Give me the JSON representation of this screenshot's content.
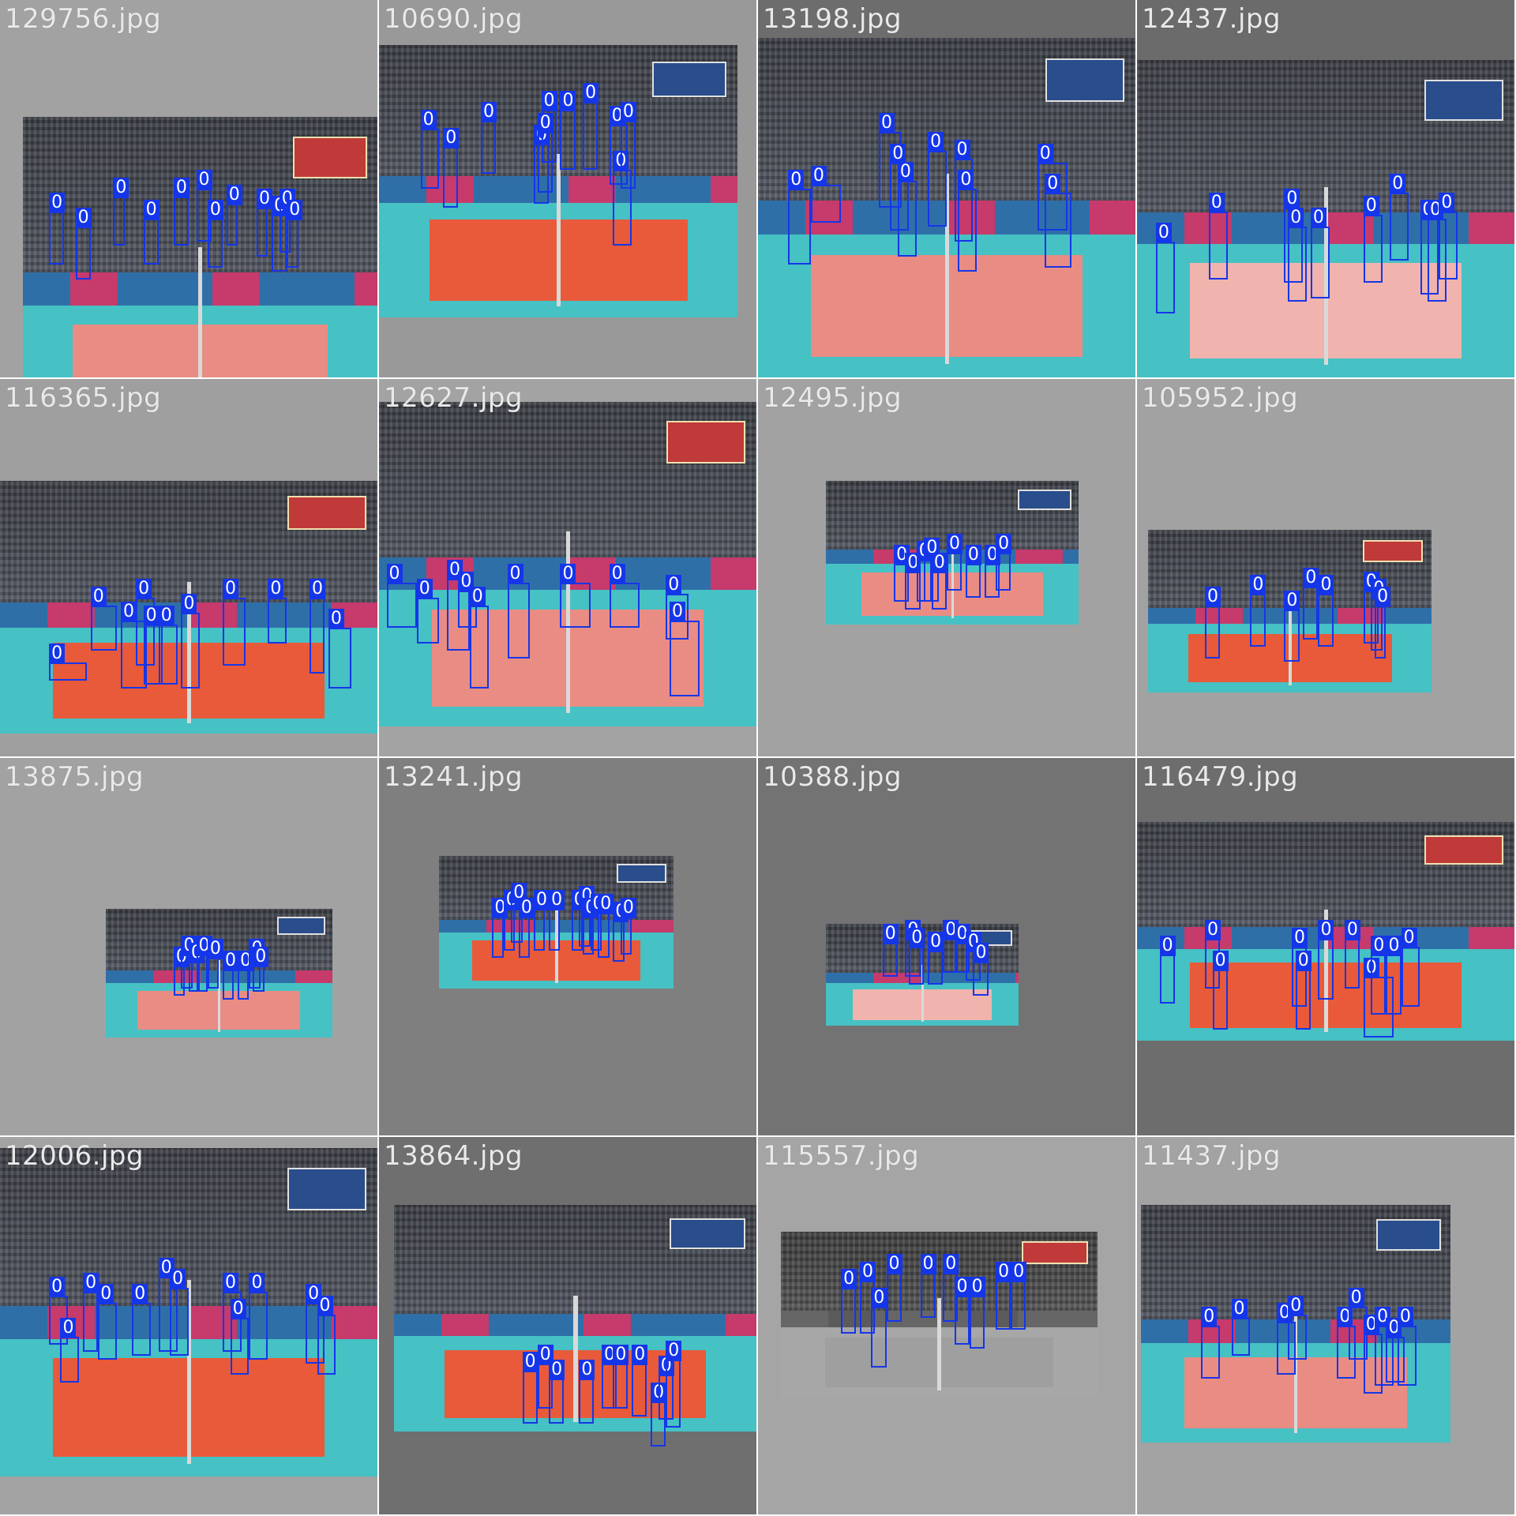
{
  "tiles": [
    {
      "filename": "129756.jpg",
      "bg": "#a2a2a2",
      "court": "pink",
      "scorebug": "red",
      "photo": [
        6,
        31,
        94,
        86
      ],
      "boxes": [
        [
          13,
          56,
          4,
          14
        ],
        [
          20,
          60,
          4,
          14
        ],
        [
          30,
          52,
          3,
          13
        ],
        [
          38,
          58,
          4,
          12
        ],
        [
          46,
          52,
          4,
          13
        ],
        [
          52,
          50,
          4,
          14
        ],
        [
          55,
          58,
          4,
          13
        ],
        [
          60,
          54,
          3,
          11
        ],
        [
          72,
          57,
          4,
          15
        ],
        [
          74,
          55,
          3,
          12
        ],
        [
          76,
          58,
          3,
          13
        ],
        [
          68,
          55,
          3,
          13
        ]
      ]
    },
    {
      "filename": "10690.jpg",
      "bg": "#999999",
      "court": "orange",
      "scorebug": "blue",
      "photo": [
        0,
        12,
        95,
        72
      ],
      "boxes": [
        [
          11,
          34,
          5,
          16
        ],
        [
          17,
          39,
          4,
          16
        ],
        [
          27,
          32,
          4,
          14
        ],
        [
          41,
          38,
          4,
          16
        ],
        [
          43,
          29,
          4,
          14
        ],
        [
          48,
          29,
          4,
          16
        ],
        [
          54,
          27,
          4,
          18
        ],
        [
          61,
          33,
          5,
          16
        ],
        [
          62,
          45,
          5,
          20
        ],
        [
          64,
          32,
          4,
          18
        ],
        [
          42,
          35,
          4,
          16
        ]
      ]
    },
    {
      "filename": "13198.jpg",
      "bg": "#6d6d6d",
      "court": "pink",
      "scorebug": "blue",
      "photo": [
        0,
        10,
        100,
        90
      ],
      "boxes": [
        [
          8,
          50,
          6,
          20
        ],
        [
          14,
          49,
          8,
          10
        ],
        [
          32,
          35,
          6,
          20
        ],
        [
          35,
          43,
          5,
          18
        ],
        [
          37,
          48,
          5,
          20
        ],
        [
          45,
          40,
          5,
          20
        ],
        [
          52,
          42,
          5,
          22
        ],
        [
          53,
          50,
          5,
          22
        ],
        [
          74,
          43,
          8,
          18
        ],
        [
          76,
          51,
          7,
          20
        ]
      ]
    },
    {
      "filename": "12437.jpg",
      "bg": "#6b6b6b",
      "court": "lightpink",
      "scorebug": "blue",
      "photo": [
        0,
        16,
        100,
        84
      ],
      "boxes": [
        [
          5,
          64,
          5,
          19
        ],
        [
          19,
          56,
          5,
          18
        ],
        [
          39,
          55,
          5,
          20
        ],
        [
          40,
          60,
          5,
          20
        ],
        [
          46,
          60,
          5,
          19
        ],
        [
          60,
          57,
          5,
          18
        ],
        [
          67,
          51,
          5,
          18
        ],
        [
          75,
          58,
          5,
          20
        ],
        [
          77,
          58,
          5,
          22
        ],
        [
          80,
          56,
          5,
          18
        ]
      ]
    },
    {
      "filename": "116365.jpg",
      "bg": "#9f9f9f",
      "court": "orange",
      "scorebug": "red",
      "photo": [
        0,
        27,
        100,
        67
      ],
      "boxes": [
        [
          13,
          75,
          10,
          5
        ],
        [
          24,
          60,
          7,
          12
        ],
        [
          32,
          64,
          7,
          18
        ],
        [
          36,
          58,
          5,
          18
        ],
        [
          38,
          65,
          5,
          16
        ],
        [
          42,
          65,
          5,
          16
        ],
        [
          48,
          62,
          5,
          20
        ],
        [
          59,
          58,
          6,
          18
        ],
        [
          71,
          58,
          5,
          12
        ],
        [
          82,
          58,
          4,
          20
        ],
        [
          87,
          66,
          6,
          16
        ]
      ]
    },
    {
      "filename": "12627.jpg",
      "bg": "#a3a3a3",
      "court": "pink",
      "scorebug": "red",
      "photo": [
        0,
        6,
        100,
        86
      ],
      "boxes": [
        [
          2,
          54,
          8,
          12
        ],
        [
          10,
          58,
          6,
          12
        ],
        [
          18,
          53,
          6,
          19
        ],
        [
          21,
          56,
          5,
          10
        ],
        [
          24,
          60,
          5,
          22
        ],
        [
          34,
          54,
          6,
          20
        ],
        [
          48,
          54,
          8,
          12
        ],
        [
          61,
          54,
          8,
          12
        ],
        [
          76,
          57,
          6,
          12
        ],
        [
          77,
          64,
          8,
          20
        ]
      ]
    },
    {
      "filename": "12495.jpg",
      "bg": "#a2a2a2",
      "court": "pink",
      "scorebug": "blue",
      "photo": [
        18,
        27,
        67,
        38
      ],
      "boxes": [
        [
          36,
          49,
          4,
          10
        ],
        [
          39,
          51,
          4,
          10
        ],
        [
          42,
          48,
          4,
          11
        ],
        [
          44,
          47,
          4,
          12
        ],
        [
          46,
          51,
          4,
          10
        ],
        [
          50,
          46,
          4,
          10
        ],
        [
          55,
          49,
          4,
          9
        ],
        [
          60,
          49,
          4,
          9
        ],
        [
          63,
          46,
          4,
          10
        ]
      ]
    },
    {
      "filename": "105952.jpg",
      "bg": "#a2a2a2",
      "court": "orange",
      "scorebug": "red",
      "photo": [
        3,
        40,
        75,
        43
      ],
      "boxes": [
        [
          18,
          60,
          4,
          14
        ],
        [
          30,
          57,
          4,
          14
        ],
        [
          39,
          61,
          4,
          14
        ],
        [
          44,
          55,
          4,
          14
        ],
        [
          48,
          57,
          4,
          14
        ],
        [
          60,
          56,
          4,
          14
        ],
        [
          62,
          58,
          3,
          14
        ],
        [
          63,
          60,
          3,
          14
        ]
      ]
    },
    {
      "filename": "13875.jpg",
      "bg": "#a2a2a2",
      "court": "pink",
      "scorebug": "blue",
      "photo": [
        28,
        40,
        60,
        34
      ],
      "boxes": [
        [
          46,
          55,
          3,
          8
        ],
        [
          48,
          52,
          3,
          9
        ],
        [
          50,
          54,
          3,
          8
        ],
        [
          52,
          52,
          3,
          10
        ],
        [
          55,
          53,
          3,
          8
        ],
        [
          59,
          56,
          3,
          8
        ],
        [
          63,
          56,
          3,
          8
        ],
        [
          66,
          53,
          3,
          8
        ],
        [
          67,
          55,
          3,
          7
        ]
      ]
    },
    {
      "filename": "13241.jpg",
      "bg": "#7f7f7f",
      "court": "orange",
      "scorebug": "blue",
      "photo": [
        16,
        26,
        62,
        35
      ],
      "boxes": [
        [
          30,
          42,
          3,
          11
        ],
        [
          33,
          40,
          3,
          11
        ],
        [
          35,
          38,
          3,
          11
        ],
        [
          37,
          42,
          3,
          11
        ],
        [
          41,
          40,
          3,
          11
        ],
        [
          45,
          40,
          3,
          11
        ],
        [
          51,
          40,
          3,
          11
        ],
        [
          53,
          39,
          3,
          11
        ],
        [
          54,
          42,
          3,
          10
        ],
        [
          56,
          41,
          3,
          10
        ],
        [
          58,
          41,
          3,
          12
        ],
        [
          62,
          43,
          3,
          11
        ],
        [
          64,
          42,
          3,
          10
        ]
      ]
    },
    {
      "filename": "10388.jpg",
      "bg": "#737373",
      "court": "lightpink",
      "scorebug": "blue",
      "photo": [
        18,
        44,
        51,
        27
      ],
      "boxes": [
        [
          33,
          49,
          4,
          9
        ],
        [
          39,
          48,
          4,
          10
        ],
        [
          40,
          50,
          4,
          10
        ],
        [
          45,
          51,
          4,
          9
        ],
        [
          49,
          48,
          4,
          9
        ],
        [
          52,
          49,
          4,
          8
        ],
        [
          55,
          51,
          4,
          8
        ],
        [
          57,
          54,
          4,
          9
        ]
      ]
    },
    {
      "filename": "116479.jpg",
      "bg": "#6d6d6d",
      "court": "orange",
      "scorebug": "red",
      "photo": [
        0,
        17,
        100,
        58
      ],
      "boxes": [
        [
          6,
          52,
          4,
          13
        ],
        [
          18,
          48,
          4,
          13
        ],
        [
          20,
          56,
          4,
          16
        ],
        [
          41,
          50,
          4,
          16
        ],
        [
          42,
          56,
          4,
          16
        ],
        [
          48,
          48,
          4,
          16
        ],
        [
          55,
          48,
          4,
          13
        ],
        [
          60,
          58,
          8,
          16
        ],
        [
          62,
          52,
          4,
          16
        ],
        [
          66,
          52,
          4,
          16
        ],
        [
          70,
          50,
          5,
          16
        ]
      ]
    },
    {
      "filename": "12006.jpg",
      "bg": "#a3a3a3",
      "court": "orange",
      "scorebug": "blue",
      "photo": [
        0,
        3,
        100,
        87
      ],
      "boxes": [
        [
          13,
          42,
          5,
          13
        ],
        [
          16,
          53,
          5,
          12
        ],
        [
          22,
          41,
          4,
          16
        ],
        [
          26,
          44,
          5,
          15
        ],
        [
          35,
          44,
          5,
          14
        ],
        [
          42,
          37,
          5,
          20
        ],
        [
          45,
          40,
          5,
          18
        ],
        [
          59,
          41,
          5,
          16
        ],
        [
          61,
          48,
          5,
          15
        ],
        [
          66,
          41,
          5,
          18
        ],
        [
          81,
          44,
          5,
          16
        ],
        [
          84,
          47,
          5,
          16
        ]
      ]
    },
    {
      "filename": "13864.jpg",
      "bg": "#6f6f6f",
      "court": "orange",
      "scorebug": "blue",
      "photo": [
        4,
        18,
        96,
        60
      ],
      "boxes": [
        [
          38,
          62,
          4,
          14
        ],
        [
          42,
          60,
          4,
          12
        ],
        [
          45,
          64,
          4,
          12
        ],
        [
          53,
          64,
          4,
          12
        ],
        [
          59,
          60,
          4,
          12
        ],
        [
          62,
          60,
          4,
          12
        ],
        [
          67,
          60,
          4,
          14
        ],
        [
          72,
          70,
          4,
          12
        ],
        [
          74,
          63,
          4,
          12
        ],
        [
          76,
          59,
          4,
          18
        ]
      ]
    },
    {
      "filename": "115557.jpg",
      "bg": "#a5a5a5",
      "court": "gray",
      "scorebug": "red",
      "photo": [
        6,
        25,
        84,
        44
      ],
      "boxes": [
        [
          22,
          40,
          4,
          12
        ],
        [
          27,
          38,
          4,
          14
        ],
        [
          30,
          45,
          4,
          16
        ],
        [
          34,
          36,
          4,
          13
        ],
        [
          43,
          36,
          4,
          12
        ],
        [
          49,
          36,
          4,
          13
        ],
        [
          52,
          42,
          4,
          13
        ],
        [
          56,
          42,
          4,
          14
        ],
        [
          63,
          38,
          4,
          13
        ],
        [
          67,
          38,
          4,
          13
        ]
      ]
    },
    {
      "filename": "11437.jpg",
      "bg": "#a3a3a3",
      "court": "pink",
      "scorebug": "blue",
      "photo": [
        1,
        18,
        82,
        63
      ],
      "boxes": [
        [
          17,
          50,
          5,
          14
        ],
        [
          25,
          48,
          5,
          10
        ],
        [
          37,
          49,
          5,
          14
        ],
        [
          40,
          47,
          5,
          12
        ],
        [
          53,
          50,
          5,
          14
        ],
        [
          56,
          45,
          5,
          14
        ],
        [
          60,
          52,
          5,
          16
        ],
        [
          63,
          50,
          5,
          16
        ],
        [
          66,
          53,
          5,
          12
        ],
        [
          69,
          50,
          5,
          16
        ]
      ]
    }
  ],
  "box_label": "0"
}
